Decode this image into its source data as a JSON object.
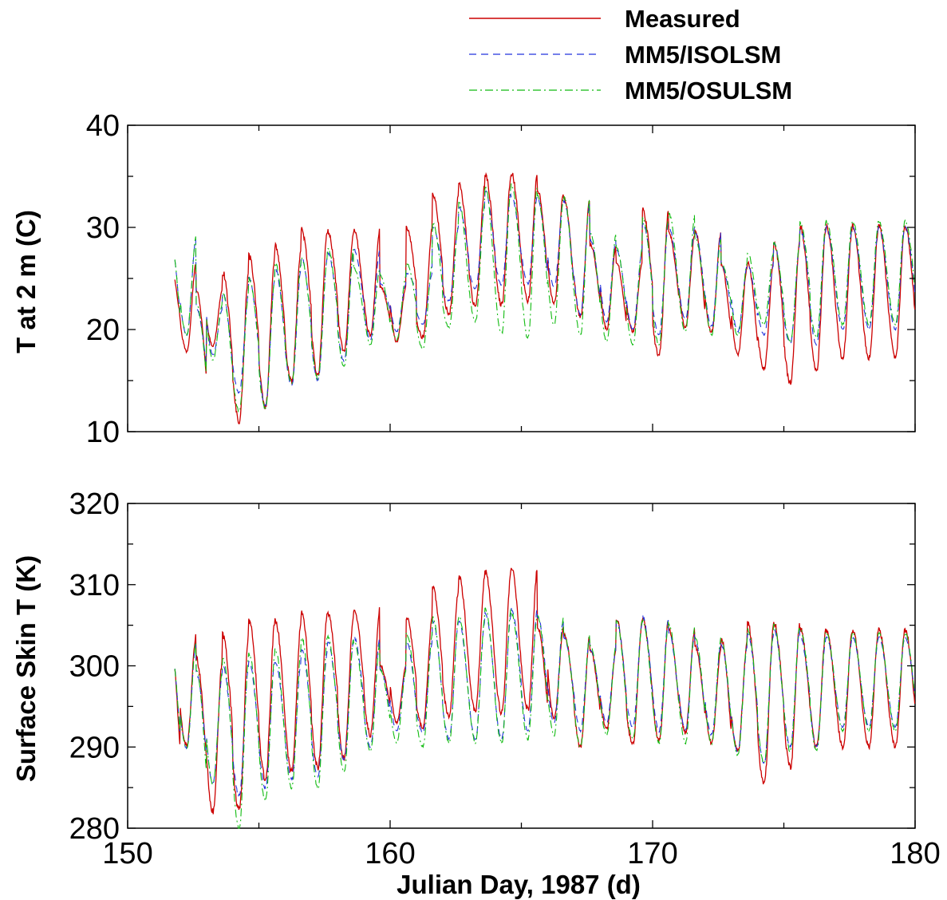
{
  "colors": {
    "measured": "#cc0000",
    "isolsm": "#2233dd",
    "osulsm": "#11bb11"
  },
  "legend": {
    "placement": "top-right",
    "entries": [
      {
        "label": "Measured",
        "color": "#cc0000",
        "style": "solid"
      },
      {
        "label": "MM5/ISOLSM",
        "color": "#2233dd",
        "style": "dashed"
      },
      {
        "label": "MM5/OSULSM",
        "color": "#11bb11",
        "style": "dash-dot"
      }
    ]
  },
  "xlabel": "Julian Day, 1987 (d)",
  "chart_data": [
    {
      "type": "line",
      "title": "",
      "xlabel": "",
      "ylabel": "T at 2 m (C)",
      "xlim": [
        150,
        180
      ],
      "ylim": [
        10,
        40
      ],
      "xticks": [
        150,
        160,
        170,
        180
      ],
      "yticks": [
        10,
        20,
        30,
        40
      ],
      "show_x_tick_labels": false,
      "grid": false,
      "day_start": 151.8,
      "day_end": 180,
      "series": [
        {
          "name": "Measured",
          "color": "#cc0000",
          "style": "solid",
          "daily_max": [
            26.5,
            23.8,
            25.6,
            27.2,
            28.2,
            29.8,
            29.6,
            29.8,
            24.2,
            30.0,
            33.3,
            34.2,
            35.2,
            35.3,
            33.6,
            32.9,
            28.3,
            26.6,
            31.7,
            29.4,
            29.6,
            26.2,
            26.5,
            28.6,
            30.1,
            30.1
          ],
          "daily_min": [
            17.9,
            18.4,
            11.0,
            12.4,
            14.8,
            15.6,
            17.8,
            19.4,
            18.8,
            19.2,
            21.5,
            22.2,
            22.4,
            22.8,
            22.5,
            21.2,
            20.0,
            19.8,
            17.5,
            20.2,
            19.8,
            17.6,
            16.1,
            14.8,
            16.0,
            17.2
          ]
        },
        {
          "name": "MM5/ISOLSM",
          "color": "#2233dd",
          "style": "dashed",
          "daily_max": [
            29.0,
            22.0,
            23.6,
            25.0,
            26.0,
            27.0,
            27.5,
            27.8,
            24.5,
            25.5,
            30.0,
            32.0,
            33.5,
            33.0,
            32.8,
            32.5,
            28.8,
            27.8,
            30.5,
            30.0,
            29.5,
            26.3,
            26.3,
            28.4,
            29.8,
            30.0
          ],
          "daily_min": [
            19.4,
            17.5,
            13.8,
            12.6,
            14.5,
            15.0,
            16.9,
            19.0,
            19.8,
            20.5,
            22.8,
            24.0,
            24.3,
            24.5,
            24.2,
            21.5,
            20.8,
            20.0,
            19.5,
            21.0,
            20.3,
            19.8,
            19.5,
            18.6,
            18.5,
            20.0
          ]
        },
        {
          "name": "MM5/OSULSM",
          "color": "#11bb11",
          "style": "dash-dot",
          "daily_max": [
            29.2,
            22.5,
            23.5,
            25.0,
            26.5,
            27.0,
            28.0,
            26.0,
            25.3,
            26.5,
            30.5,
            32.5,
            34.0,
            34.2,
            33.0,
            33.0,
            29.5,
            28.0,
            31.0,
            31.3,
            29.0,
            26.5,
            27.5,
            28.5,
            30.5,
            30.6
          ],
          "daily_min": [
            19.5,
            17.0,
            12.0,
            12.2,
            14.8,
            15.2,
            16.3,
            18.5,
            19.0,
            18.1,
            20.2,
            20.8,
            19.6,
            19.2,
            20.5,
            19.4,
            18.8,
            18.5,
            18.5,
            19.8,
            19.5,
            19.4,
            20.5,
            18.8,
            19.2,
            20.5
          ]
        }
      ]
    },
    {
      "type": "line",
      "title": "",
      "xlabel": "Julian Day, 1987 (d)",
      "ylabel": "Surface Skin T (K)",
      "xlim": [
        150,
        180
      ],
      "ylim": [
        280,
        320
      ],
      "xticks": [
        150,
        160,
        170,
        180
      ],
      "yticks": [
        280,
        290,
        300,
        310,
        320
      ],
      "show_x_tick_labels": true,
      "grid": false,
      "day_start": 151.8,
      "day_end": 180,
      "series": [
        {
          "name": "Measured",
          "color": "#cc0000",
          "style": "solid",
          "daily_max": [
            303.8,
            300.8,
            303.8,
            305.6,
            305.7,
            306.8,
            306.5,
            307.1,
            300.0,
            306.0,
            309.6,
            311.1,
            311.6,
            312.0,
            304.7,
            303.8,
            302.0,
            305.8,
            305.8,
            304.6,
            302.3,
            303.2,
            305.3,
            305.3,
            304.6,
            304.4
          ],
          "daily_min": [
            290.2,
            282.0,
            282.2,
            286.0,
            287.0,
            287.5,
            288.5,
            291.5,
            293.0,
            292.5,
            293.8,
            294.5,
            294.2,
            294.6,
            293.5,
            290.0,
            292.2,
            290.5,
            290.8,
            291.8,
            290.5,
            289.5,
            285.4,
            287.5,
            290.0,
            290.0
          ]
        },
        {
          "name": "MM5/ISOLSM",
          "color": "#2233dd",
          "style": "dashed",
          "daily_max": [
            303.0,
            299.0,
            300.0,
            300.5,
            300.5,
            302.0,
            303.0,
            303.5,
            299.5,
            303.0,
            305.5,
            305.5,
            306.5,
            307.0,
            306.0,
            303.5,
            302.0,
            305.5,
            306.0,
            304.0,
            303.0,
            302.5,
            304.0,
            304.5,
            303.5,
            303.5
          ],
          "daily_min": [
            289.8,
            285.5,
            284.0,
            285.0,
            286.0,
            286.5,
            288.5,
            290.0,
            292.0,
            291.8,
            291.0,
            291.0,
            291.0,
            292.0,
            293.0,
            292.0,
            293.0,
            292.5,
            292.0,
            292.0,
            291.5,
            289.5,
            288.0,
            290.0,
            290.0,
            292.5
          ]
        },
        {
          "name": "MM5/OSULSM",
          "color": "#11bb11",
          "style": "dash-dot",
          "daily_max": [
            303.0,
            299.5,
            301.0,
            301.5,
            302.0,
            303.5,
            303.5,
            303.0,
            299.5,
            304.0,
            306.0,
            306.0,
            307.0,
            306.5,
            306.0,
            304.0,
            302.5,
            305.5,
            305.5,
            305.0,
            303.5,
            303.0,
            304.5,
            305.0,
            304.5,
            304.0
          ],
          "daily_min": [
            289.8,
            285.5,
            280.0,
            283.5,
            285.0,
            285.0,
            287.0,
            289.5,
            290.5,
            290.0,
            290.5,
            290.5,
            290.5,
            291.0,
            291.5,
            290.0,
            291.5,
            291.0,
            290.5,
            290.5,
            290.5,
            289.0,
            288.0,
            289.5,
            289.5,
            292.0
          ]
        }
      ]
    }
  ]
}
